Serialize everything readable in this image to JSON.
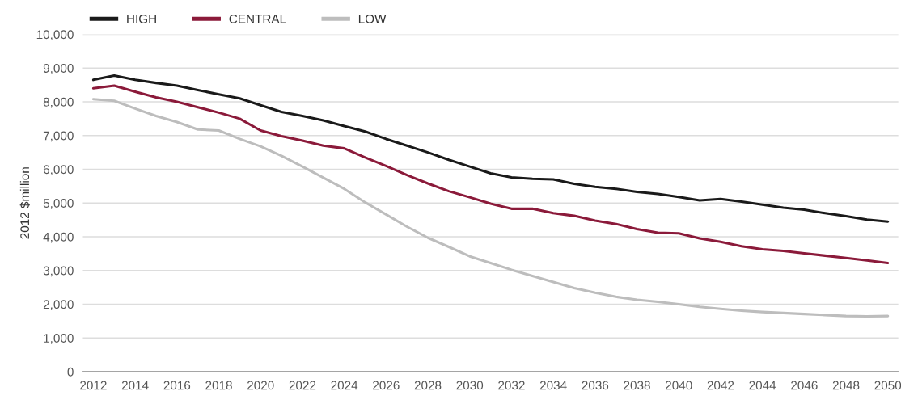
{
  "chart_data": {
    "type": "line",
    "ylabel": "2012 $million",
    "categories": [
      "2012",
      null,
      "2014",
      null,
      "2016",
      null,
      "2018",
      null,
      "2020",
      null,
      "2022",
      null,
      "2024",
      null,
      "2026",
      null,
      "2028",
      null,
      "2030",
      null,
      "2032",
      null,
      "2034",
      null,
      "2036",
      null,
      "2038",
      null,
      "2040",
      null,
      "2042",
      null,
      "2044",
      null,
      "2046",
      null,
      "2048",
      null,
      "2050"
    ],
    "series": [
      {
        "name": "HIGH",
        "color": "#1a1a1a",
        "values": [
          8650,
          8780,
          8650,
          8560,
          8480,
          8350,
          8220,
          8100,
          7900,
          7700,
          7580,
          7450,
          7280,
          7120,
          6900,
          6700,
          6500,
          6280,
          6080,
          5880,
          5760,
          5720,
          5700,
          5570,
          5480,
          5420,
          5330,
          5270,
          5180,
          5080,
          5120,
          5040,
          4950,
          4860,
          4800,
          4700,
          4610,
          4510,
          4450
        ]
      },
      {
        "name": "CENTRAL",
        "color": "#8b1a3a",
        "values": [
          8400,
          8480,
          8300,
          8130,
          8000,
          7840,
          7680,
          7500,
          7150,
          6980,
          6850,
          6700,
          6620,
          6350,
          6100,
          5830,
          5580,
          5350,
          5170,
          4980,
          4830,
          4830,
          4700,
          4620,
          4480,
          4380,
          4230,
          4120,
          4100,
          3950,
          3850,
          3720,
          3630,
          3580,
          3510,
          3440,
          3370,
          3300,
          3220
        ]
      },
      {
        "name": "LOW",
        "color": "#bdbdbd",
        "values": [
          8080,
          8030,
          7800,
          7580,
          7400,
          7180,
          7150,
          6900,
          6680,
          6400,
          6080,
          5750,
          5420,
          5020,
          4660,
          4300,
          3970,
          3700,
          3420,
          3220,
          3020,
          2840,
          2660,
          2480,
          2340,
          2220,
          2130,
          2070,
          2000,
          1920,
          1860,
          1810,
          1770,
          1740,
          1710,
          1680,
          1650,
          1640,
          1650
        ]
      }
    ],
    "ylim": [
      0,
      10000
    ],
    "yticks": [
      0,
      {
        "value": 1000,
        "label": "1,000"
      },
      {
        "value": 2000,
        "label": "2,000"
      },
      {
        "value": 3000,
        "label": "3,000"
      },
      {
        "value": 4000,
        "label": "4,000"
      },
      {
        "value": 5000,
        "label": "5,000"
      },
      {
        "value": 6000,
        "label": "6,000"
      },
      {
        "value": 7000,
        "label": "7,000"
      },
      {
        "value": 8000,
        "label": "8,000"
      },
      {
        "value": 9000,
        "label": "9,000"
      },
      {
        "value": 10000,
        "label": "10,000"
      }
    ],
    "grid": "y",
    "legend": "top left",
    "marker": "none",
    "line_style": "solid"
  }
}
